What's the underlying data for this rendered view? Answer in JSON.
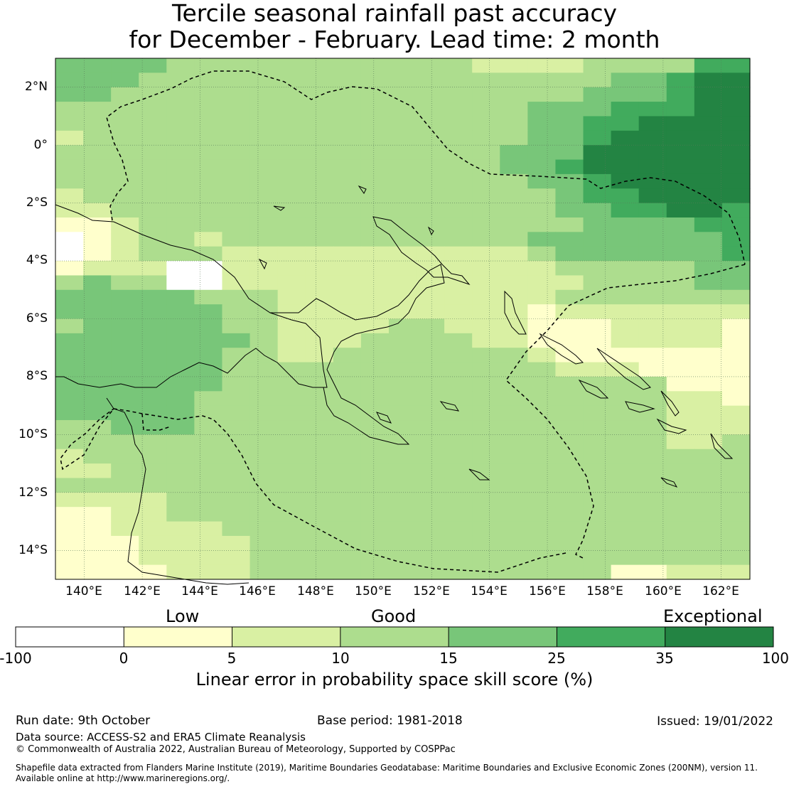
{
  "title": {
    "line1": "Tercile seasonal rainfall past accuracy",
    "line2": "for December - February. Lead time: 2 month"
  },
  "map": {
    "lat_labels": [
      "2°N",
      "0°",
      "2°S",
      "4°S",
      "6°S",
      "8°S",
      "10°S",
      "12°S",
      "14°S"
    ],
    "lon_labels": [
      "140°E",
      "142°E",
      "144°E",
      "146°E",
      "148°E",
      "150°E",
      "152°E",
      "154°E",
      "156°E",
      "158°E",
      "160°E",
      "162°E"
    ],
    "lon_range": [
      139,
      163
    ],
    "lat_range": [
      -15,
      3
    ],
    "cell_size_deg": 0.833,
    "skill_grid_rows_note": "rows from north to south, columns from west to east; values are class indices 0..6 into colorbar.classes",
    "skill_grid": [
      "4444333333333332222333355",
      "4443333333333333333344566",
      "4433333333333333333444566",
      "3333333333333333344455566",
      "3333333333333333344556666",
      "2333333333333333344566666",
      "3333333333333333444666666",
      "3333333333333333445666666",
      "3333333333333333344566666",
      "2333333333333333334556666",
      "2233333333333333334455665",
      "1123333333333333333444455",
      "0123323333333333344444445",
      "0123332222222222234444445",
      "1222002222222222223333344",
      "3433002222222222222333344",
      "4444433322222222223333333",
      "4444443322222222212222222",
      "3444443322223322211122221",
      "4444444322233332211122221",
      "4444443322333333321111111",
      "4444443333333333332221111",
      "4444443333333333333333111",
      "4444433333333333333333221",
      "4444433333333333333333222",
      "3344433333333333333333222",
      "3333333333333333333333223",
      "2333333333333333333333333",
      "2233333333333333333333333",
      "3333333333333333333333333",
      "2222333333333333333333333",
      "1122333333333333333333333",
      "1122223333333333333333333",
      "1112222333333333333333333",
      "1112222333333333333333333",
      "1111222333333333333311222"
    ],
    "colors": {
      "land_outline": "#000000",
      "eez_boundary": "#000000",
      "gridline": "#5a7a5a"
    }
  },
  "colorbar": {
    "categories": [
      "Low",
      "Good",
      "Exceptional"
    ],
    "ticks": [
      "-100",
      "0",
      "5",
      "10",
      "15",
      "25",
      "35",
      "100"
    ],
    "classes": [
      {
        "range": "-100 to 0",
        "color": "#ffffff"
      },
      {
        "range": "0 to 5",
        "color": "#ffffcc"
      },
      {
        "range": "5 to 10",
        "color": "#d9f0a3"
      },
      {
        "range": "10 to 15",
        "color": "#addd8e"
      },
      {
        "range": "15 to 25",
        "color": "#78c679"
      },
      {
        "range": "25 to 35",
        "color": "#41ab5d"
      },
      {
        "range": "35 to 100",
        "color": "#238443"
      }
    ],
    "label": "Linear error in probability space skill score (%)"
  },
  "footer": {
    "run_date": "Run date: 9th October",
    "base_period": "Base period: 1981-2018",
    "issued": "Issued: 19/01/2022",
    "data_source": "Data source: ACCESS-S2 and ERA5 Climate Reanalysis",
    "copyright": "© Commonwealth of Australia 2022, Australian Bureau of Meteorology, Supported by COSPPac",
    "shapefile_line1": "Shapefile data extracted from Flanders Marine Institute (2019), Maritime Boundaries Geodatabase: Maritime Boundaries and Exclusive Economic Zones (200NM), version 11.",
    "shapefile_line2": "Available online at http://www.marineregions.org/."
  }
}
